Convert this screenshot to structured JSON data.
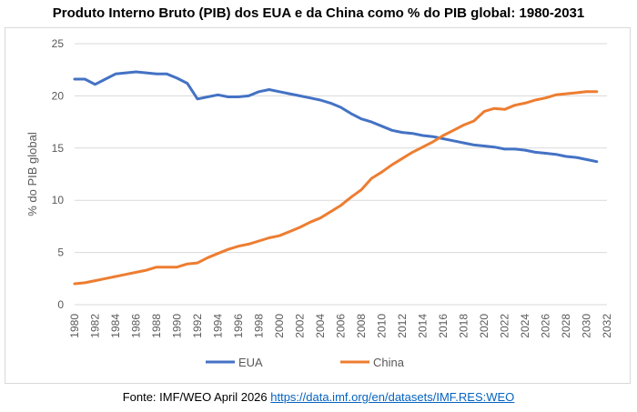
{
  "title": "Produto Interno Bruto (PIB) dos EUA e da China como % do PIB global: 1980-2031",
  "source": {
    "prefix": "Fonte: IMF/WEO April 2026 ",
    "link_text": "https://data.imf.org/en/datasets/IMF.RES:WEO"
  },
  "chart_data": {
    "type": "line",
    "ylabel": "% do PIB global",
    "xlabel": "",
    "ylim": [
      0,
      25
    ],
    "yticks": [
      0,
      5,
      10,
      15,
      20,
      25
    ],
    "xlim": [
      1980,
      2032
    ],
    "xticks": [
      1980,
      1982,
      1984,
      1986,
      1988,
      1990,
      1992,
      1994,
      1996,
      1998,
      2000,
      2002,
      2004,
      2006,
      2008,
      2010,
      2012,
      2014,
      2016,
      2018,
      2020,
      2022,
      2024,
      2026,
      2028,
      2030,
      2032
    ],
    "grid": "horizontal",
    "legend": "bottom",
    "x": [
      1980,
      1981,
      1982,
      1983,
      1984,
      1985,
      1986,
      1987,
      1988,
      1989,
      1990,
      1991,
      1992,
      1993,
      1994,
      1995,
      1996,
      1997,
      1998,
      1999,
      2000,
      2001,
      2002,
      2003,
      2004,
      2005,
      2006,
      2007,
      2008,
      2009,
      2010,
      2011,
      2012,
      2013,
      2014,
      2015,
      2016,
      2017,
      2018,
      2019,
      2020,
      2021,
      2022,
      2023,
      2024,
      2025,
      2026,
      2027,
      2028,
      2029,
      2030,
      2031
    ],
    "series": [
      {
        "name": "EUA",
        "color": "#4472c4",
        "values": [
          21.6,
          21.6,
          21.1,
          21.6,
          22.1,
          22.2,
          22.3,
          22.2,
          22.1,
          22.1,
          21.7,
          21.2,
          19.7,
          19.9,
          20.1,
          19.9,
          19.9,
          20.0,
          20.4,
          20.6,
          20.4,
          20.2,
          20.0,
          19.8,
          19.6,
          19.3,
          18.9,
          18.3,
          17.8,
          17.5,
          17.1,
          16.7,
          16.5,
          16.4,
          16.2,
          16.1,
          15.9,
          15.7,
          15.5,
          15.3,
          15.2,
          15.1,
          14.9,
          14.9,
          14.8,
          14.6,
          14.5,
          14.4,
          14.2,
          14.1,
          13.9,
          13.7
        ]
      },
      {
        "name": "China",
        "color": "#ed7d31",
        "values": [
          2.0,
          2.1,
          2.3,
          2.5,
          2.7,
          2.9,
          3.1,
          3.3,
          3.6,
          3.6,
          3.6,
          3.9,
          4.0,
          4.5,
          4.9,
          5.3,
          5.6,
          5.8,
          6.1,
          6.4,
          6.6,
          7.0,
          7.4,
          7.9,
          8.3,
          8.9,
          9.5,
          10.3,
          11.0,
          12.1,
          12.7,
          13.4,
          14.0,
          14.6,
          15.1,
          15.6,
          16.2,
          16.7,
          17.2,
          17.6,
          18.5,
          18.8,
          18.7,
          19.1,
          19.3,
          19.6,
          19.8,
          20.1,
          20.2,
          20.3,
          20.4,
          20.4
        ]
      }
    ]
  }
}
